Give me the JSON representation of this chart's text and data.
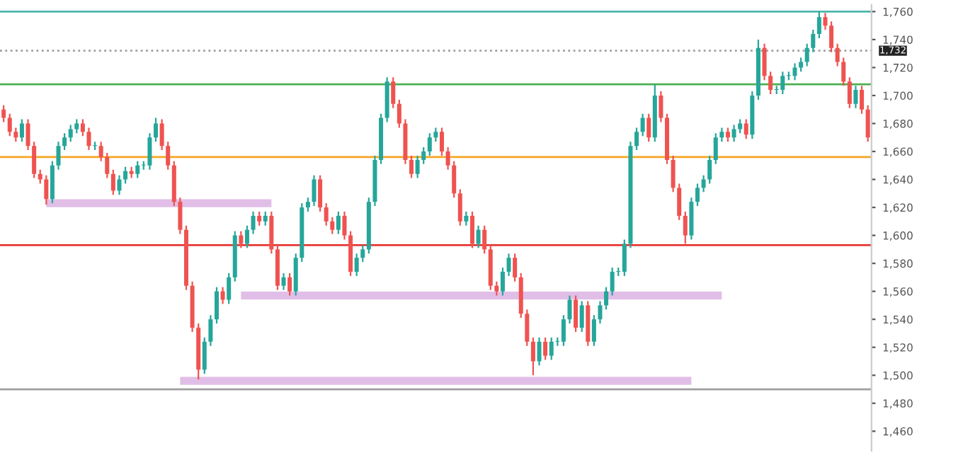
{
  "chart_data": {
    "type": "candlestick",
    "categories": [
      null,
      null,
      null,
      null,
      null,
      null,
      null,
      null,
      null,
      null,
      null,
      null,
      null,
      null,
      null,
      null,
      null,
      null,
      null,
      null,
      null,
      null,
      null,
      null,
      null,
      null,
      null,
      null,
      null,
      null,
      null,
      null,
      null,
      null,
      null,
      null,
      null,
      null,
      null,
      null,
      null,
      null,
      null,
      null,
      null,
      null,
      null,
      null,
      null,
      null,
      null,
      null,
      null,
      null,
      null,
      null,
      null,
      null,
      null,
      null,
      null,
      null,
      null,
      null,
      null,
      null,
      null,
      null,
      null,
      null,
      null,
      null,
      null,
      null,
      null,
      null,
      null,
      null,
      null,
      null,
      null,
      null,
      null,
      null,
      null,
      null,
      null,
      null,
      null,
      null,
      null,
      null,
      null,
      null,
      null,
      null,
      null,
      null,
      null,
      null,
      null,
      null,
      null,
      null,
      null,
      null,
      null,
      null,
      null,
      null,
      null,
      null,
      null,
      null,
      null,
      null,
      null,
      null,
      null,
      null,
      null,
      null,
      null,
      null,
      null,
      null,
      null,
      null,
      null,
      null,
      null,
      null,
      null,
      null,
      null,
      null,
      null,
      null,
      null,
      null,
      null,
      null,
      null
    ],
    "ohlc": [
      [
        1690,
        1693,
        1681,
        1684
      ],
      [
        1684,
        1687,
        1671,
        1674
      ],
      [
        1674,
        1677,
        1667,
        1670
      ],
      [
        1670,
        1683,
        1667,
        1680
      ],
      [
        1680,
        1683,
        1661,
        1664
      ],
      [
        1664,
        1667,
        1641,
        1644
      ],
      [
        1644,
        1647,
        1637,
        1640
      ],
      [
        1640,
        1643,
        1622,
        1626
      ],
      [
        1626,
        1653,
        1623,
        1650
      ],
      [
        1650,
        1667,
        1647,
        1664
      ],
      [
        1664,
        1673,
        1661,
        1670
      ],
      [
        1670,
        1679,
        1667,
        1676
      ],
      [
        1676,
        1683,
        1673,
        1680
      ],
      [
        1680,
        1683,
        1671,
        1674
      ],
      [
        1674,
        1677,
        1661,
        1664
      ],
      [
        1664,
        1667,
        1661,
        1664
      ],
      [
        1664,
        1667,
        1653,
        1656
      ],
      [
        1656,
        1659,
        1641,
        1644
      ],
      [
        1644,
        1647,
        1629,
        1632
      ],
      [
        1632,
        1643,
        1629,
        1640
      ],
      [
        1640,
        1649,
        1637,
        1646
      ],
      [
        1646,
        1649,
        1641,
        1644
      ],
      [
        1644,
        1653,
        1641,
        1650
      ],
      [
        1650,
        1653,
        1647,
        1650
      ],
      [
        1650,
        1673,
        1647,
        1670
      ],
      [
        1670,
        1684,
        1667,
        1680
      ],
      [
        1680,
        1683,
        1661,
        1664
      ],
      [
        1664,
        1667,
        1647,
        1650
      ],
      [
        1650,
        1653,
        1621,
        1624
      ],
      [
        1624,
        1627,
        1601,
        1604
      ],
      [
        1604,
        1607,
        1561,
        1564
      ],
      [
        1564,
        1567,
        1531,
        1534
      ],
      [
        1534,
        1537,
        1497,
        1504
      ],
      [
        1504,
        1527,
        1501,
        1524
      ],
      [
        1524,
        1543,
        1521,
        1540
      ],
      [
        1540,
        1563,
        1537,
        1560
      ],
      [
        1560,
        1563,
        1551,
        1554
      ],
      [
        1554,
        1573,
        1551,
        1570
      ],
      [
        1570,
        1603,
        1567,
        1600
      ],
      [
        1600,
        1603,
        1591,
        1594
      ],
      [
        1594,
        1607,
        1591,
        1604
      ],
      [
        1604,
        1617,
        1601,
        1614
      ],
      [
        1614,
        1617,
        1607,
        1610
      ],
      [
        1610,
        1617,
        1607,
        1614
      ],
      [
        1614,
        1617,
        1587,
        1590
      ],
      [
        1590,
        1593,
        1561,
        1564
      ],
      [
        1564,
        1573,
        1561,
        1570
      ],
      [
        1570,
        1573,
        1557,
        1560
      ],
      [
        1560,
        1587,
        1557,
        1584
      ],
      [
        1584,
        1623,
        1581,
        1620
      ],
      [
        1620,
        1627,
        1617,
        1624
      ],
      [
        1624,
        1643,
        1621,
        1640
      ],
      [
        1640,
        1643,
        1617,
        1620
      ],
      [
        1620,
        1623,
        1607,
        1610
      ],
      [
        1610,
        1613,
        1601,
        1604
      ],
      [
        1604,
        1617,
        1601,
        1614
      ],
      [
        1614,
        1617,
        1597,
        1600
      ],
      [
        1600,
        1603,
        1571,
        1574
      ],
      [
        1574,
        1587,
        1571,
        1584
      ],
      [
        1584,
        1593,
        1581,
        1590
      ],
      [
        1590,
        1627,
        1587,
        1624
      ],
      [
        1624,
        1657,
        1621,
        1654
      ],
      [
        1654,
        1687,
        1651,
        1684
      ],
      [
        1684,
        1713,
        1681,
        1710
      ],
      [
        1710,
        1713,
        1691,
        1694
      ],
      [
        1694,
        1697,
        1677,
        1680
      ],
      [
        1680,
        1683,
        1651,
        1654
      ],
      [
        1654,
        1657,
        1641,
        1644
      ],
      [
        1644,
        1657,
        1641,
        1654
      ],
      [
        1654,
        1663,
        1651,
        1660
      ],
      [
        1660,
        1673,
        1657,
        1670
      ],
      [
        1670,
        1677,
        1667,
        1674
      ],
      [
        1674,
        1677,
        1657,
        1660
      ],
      [
        1660,
        1663,
        1647,
        1650
      ],
      [
        1650,
        1653,
        1627,
        1630
      ],
      [
        1630,
        1633,
        1607,
        1610
      ],
      [
        1610,
        1617,
        1607,
        1614
      ],
      [
        1614,
        1617,
        1591,
        1594
      ],
      [
        1594,
        1607,
        1591,
        1604
      ],
      [
        1604,
        1607,
        1587,
        1590
      ],
      [
        1590,
        1593,
        1561,
        1564
      ],
      [
        1564,
        1567,
        1557,
        1560
      ],
      [
        1560,
        1577,
        1557,
        1574
      ],
      [
        1574,
        1587,
        1571,
        1584
      ],
      [
        1584,
        1587,
        1567,
        1570
      ],
      [
        1570,
        1573,
        1541,
        1544
      ],
      [
        1544,
        1547,
        1521,
        1524
      ],
      [
        1524,
        1527,
        1500,
        1510
      ],
      [
        1510,
        1527,
        1507,
        1524
      ],
      [
        1524,
        1527,
        1511,
        1514
      ],
      [
        1514,
        1527,
        1511,
        1524
      ],
      [
        1524,
        1527,
        1521,
        1524
      ],
      [
        1524,
        1543,
        1521,
        1540
      ],
      [
        1540,
        1557,
        1537,
        1554
      ],
      [
        1554,
        1557,
        1531,
        1534
      ],
      [
        1534,
        1553,
        1531,
        1550
      ],
      [
        1550,
        1553,
        1521,
        1524
      ],
      [
        1524,
        1543,
        1521,
        1540
      ],
      [
        1540,
        1553,
        1537,
        1550
      ],
      [
        1550,
        1563,
        1547,
        1560
      ],
      [
        1560,
        1577,
        1557,
        1574
      ],
      [
        1574,
        1577,
        1571,
        1574
      ],
      [
        1574,
        1597,
        1571,
        1594
      ],
      [
        1594,
        1667,
        1591,
        1664
      ],
      [
        1664,
        1677,
        1661,
        1674
      ],
      [
        1674,
        1687,
        1671,
        1684
      ],
      [
        1684,
        1687,
        1667,
        1670
      ],
      [
        1670,
        1708,
        1667,
        1700
      ],
      [
        1700,
        1703,
        1681,
        1684
      ],
      [
        1684,
        1687,
        1651,
        1654
      ],
      [
        1654,
        1657,
        1631,
        1634
      ],
      [
        1634,
        1637,
        1611,
        1614
      ],
      [
        1614,
        1617,
        1594,
        1600
      ],
      [
        1600,
        1627,
        1597,
        1624
      ],
      [
        1624,
        1637,
        1621,
        1634
      ],
      [
        1634,
        1643,
        1631,
        1640
      ],
      [
        1640,
        1657,
        1637,
        1654
      ],
      [
        1654,
        1673,
        1651,
        1670
      ],
      [
        1670,
        1677,
        1667,
        1674
      ],
      [
        1674,
        1677,
        1667,
        1670
      ],
      [
        1670,
        1679,
        1667,
        1676
      ],
      [
        1676,
        1683,
        1673,
        1680
      ],
      [
        1680,
        1683,
        1669,
        1672
      ],
      [
        1672,
        1703,
        1669,
        1700
      ],
      [
        1700,
        1740,
        1697,
        1734
      ],
      [
        1734,
        1737,
        1711,
        1714
      ],
      [
        1714,
        1717,
        1701,
        1704
      ],
      [
        1704,
        1707,
        1701,
        1704
      ],
      [
        1704,
        1717,
        1701,
        1714
      ],
      [
        1714,
        1717,
        1711,
        1714
      ],
      [
        1714,
        1723,
        1711,
        1720
      ],
      [
        1720,
        1727,
        1717,
        1724
      ],
      [
        1724,
        1737,
        1721,
        1734
      ],
      [
        1734,
        1747,
        1731,
        1744
      ],
      [
        1744,
        1760,
        1741,
        1756
      ],
      [
        1756,
        1759,
        1747,
        1750
      ],
      [
        1750,
        1753,
        1731,
        1734
      ],
      [
        1734,
        1737,
        1721,
        1724
      ],
      [
        1724,
        1727,
        1707,
        1710
      ],
      [
        1710,
        1713,
        1691,
        1694
      ],
      [
        1694,
        1707,
        1691,
        1704
      ],
      [
        1704,
        1707,
        1687,
        1690
      ],
      [
        1690,
        1693,
        1667,
        1670
      ]
    ],
    "colors": [
      "#ef5350",
      "#ef5350",
      "#ef5350",
      "#26a69a",
      "#ef5350",
      "#ef5350",
      "#ef5350",
      "#ef5350",
      "#26a69a",
      "#26a69a",
      "#26a69a",
      "#26a69a",
      "#26a69a",
      "#ef5350",
      "#ef5350",
      "#26a69a",
      "#ef5350",
      "#ef5350",
      "#ef5350",
      "#26a69a",
      "#26a69a",
      "#ef5350",
      "#26a69a",
      "#26a69a",
      "#26a69a",
      "#26a69a",
      "#ef5350",
      "#ef5350",
      "#ef5350",
      "#ef5350",
      "#ef5350",
      "#ef5350",
      "#ef5350",
      "#26a69a",
      "#26a69a",
      "#26a69a",
      "#ef5350",
      "#26a69a",
      "#26a69a",
      "#ef5350",
      "#26a69a",
      "#26a69a",
      "#ef5350",
      "#26a69a",
      "#ef5350",
      "#ef5350",
      "#26a69a",
      "#ef5350",
      "#26a69a",
      "#26a69a",
      "#26a69a",
      "#26a69a",
      "#ef5350",
      "#ef5350",
      "#ef5350",
      "#26a69a",
      "#ef5350",
      "#ef5350",
      "#26a69a",
      "#26a69a",
      "#26a69a",
      "#26a69a",
      "#26a69a",
      "#26a69a",
      "#ef5350",
      "#ef5350",
      "#ef5350",
      "#ef5350",
      "#26a69a",
      "#26a69a",
      "#26a69a",
      "#26a69a",
      "#ef5350",
      "#ef5350",
      "#ef5350",
      "#ef5350",
      "#26a69a",
      "#ef5350",
      "#26a69a",
      "#ef5350",
      "#ef5350",
      "#ef5350",
      "#26a69a",
      "#26a69a",
      "#ef5350",
      "#ef5350",
      "#ef5350",
      "#ef5350",
      "#26a69a",
      "#ef5350",
      "#26a69a",
      "#26a69a",
      "#26a69a",
      "#26a69a",
      "#ef5350",
      "#26a69a",
      "#ef5350",
      "#26a69a",
      "#26a69a",
      "#26a69a",
      "#26a69a",
      "#26a69a",
      "#26a69a",
      "#26a69a",
      "#26a69a",
      "#26a69a",
      "#ef5350",
      "#26a69a",
      "#ef5350",
      "#ef5350",
      "#ef5350",
      "#ef5350",
      "#ef5350",
      "#26a69a",
      "#26a69a",
      "#26a69a",
      "#26a69a",
      "#26a69a",
      "#26a69a",
      "#ef5350",
      "#26a69a",
      "#26a69a",
      "#ef5350",
      "#26a69a",
      "#26a69a",
      "#ef5350",
      "#ef5350",
      "#26a69a",
      "#26a69a",
      "#26a69a",
      "#26a69a",
      "#26a69a",
      "#26a69a",
      "#26a69a",
      "#26a69a",
      "#ef5350",
      "#ef5350",
      "#ef5350",
      "#ef5350",
      "#ef5350",
      "#26a69a",
      "#ef5350",
      "#ef5350"
    ],
    "series": [
      {
        "type": "line",
        "color": "#e1bee7",
        "values": [
          null,
          null,
          null,
          null,
          null,
          null,
          null,
          1623,
          1623,
          1623,
          1623,
          1623,
          1623,
          1623,
          1623,
          1623,
          1623,
          1623,
          1623,
          1623,
          1623,
          1623,
          1623,
          1623,
          1623,
          1623,
          1623,
          1623,
          1623,
          1623,
          1623,
          1623,
          1623,
          1623,
          1623,
          1623,
          1623,
          1623,
          1623,
          1623,
          1623,
          1623,
          1623,
          1623,
          1623,
          null,
          null,
          null,
          null,
          null,
          null,
          null,
          null,
          null,
          null,
          null,
          null,
          null,
          null,
          null,
          null,
          null,
          null,
          null,
          null,
          null,
          null,
          null,
          null,
          null,
          null,
          null,
          null,
          null,
          null,
          null,
          null,
          null,
          null,
          null,
          null,
          null,
          null,
          null,
          null,
          null,
          null,
          null,
          null,
          null,
          null,
          null,
          null,
          null,
          null,
          null,
          null,
          null,
          null,
          null,
          null,
          null,
          null,
          null,
          null,
          null,
          null,
          null,
          null,
          null,
          null,
          null,
          null,
          null,
          null,
          null,
          null,
          null,
          null,
          null,
          null,
          null,
          null,
          null,
          null,
          null,
          null,
          null,
          null,
          null,
          null,
          null,
          null,
          null,
          null,
          null,
          null,
          null,
          null,
          null,
          null,
          null,
          null
        ]
      },
      {
        "type": "line",
        "color": "#e1bee7",
        "values": [
          null,
          null,
          null,
          null,
          null,
          null,
          null,
          null,
          null,
          null,
          null,
          null,
          null,
          null,
          null,
          null,
          null,
          null,
          null,
          null,
          null,
          null,
          null,
          null,
          null,
          null,
          null,
          null,
          null,
          null,
          null,
          null,
          null,
          null,
          null,
          null,
          null,
          null,
          null,
          1557,
          1557,
          1557,
          1557,
          1557,
          1557,
          1557,
          1557,
          1557,
          1557,
          1557,
          1557,
          1557,
          1557,
          1557,
          1557,
          1557,
          1557,
          1557,
          1557,
          1557,
          1557,
          1557,
          1557,
          1557,
          1557,
          1557,
          1557,
          1557,
          1557,
          1557,
          1557,
          1557,
          1557,
          1557,
          1557,
          1557,
          1557,
          1557,
          1557,
          1557,
          1557,
          1557,
          1557,
          1557,
          1557,
          1557,
          1557,
          1557,
          1557,
          1557,
          1557,
          1557,
          1557,
          1557,
          1557,
          1557,
          1557,
          1557,
          1557,
          1557,
          1557,
          1557,
          1557,
          1557,
          1557,
          1557,
          1557,
          1557,
          1557,
          1557,
          1557,
          1557,
          1557,
          1557,
          1557,
          1557,
          1557,
          1557,
          1557,
          null,
          null,
          null,
          null,
          null,
          null,
          null,
          null,
          null,
          null,
          null,
          null,
          null,
          null,
          null,
          null,
          null,
          null,
          null,
          null,
          null,
          null,
          null,
          null
        ]
      },
      {
        "type": "line",
        "color": "#e1bee7",
        "values": [
          null,
          null,
          null,
          null,
          null,
          null,
          null,
          null,
          null,
          null,
          null,
          null,
          null,
          null,
          null,
          null,
          null,
          null,
          null,
          null,
          null,
          null,
          null,
          null,
          null,
          null,
          null,
          null,
          null,
          1496,
          1496,
          1496,
          1496,
          1496,
          1496,
          1496,
          1496,
          1496,
          1496,
          1496,
          1496,
          1496,
          1496,
          1496,
          1496,
          1496,
          1496,
          1496,
          1496,
          1496,
          1496,
          1496,
          1496,
          1496,
          1496,
          1496,
          1496,
          1496,
          1496,
          1496,
          1496,
          1496,
          1496,
          1496,
          1496,
          1496,
          1496,
          1496,
          1496,
          1496,
          1496,
          1496,
          1496,
          1496,
          1496,
          1496,
          1496,
          1496,
          1496,
          1496,
          1496,
          1496,
          1496,
          1496,
          1496,
          1496,
          1496,
          1496,
          1496,
          1496,
          1496,
          1496,
          1496,
          1496,
          1496,
          1496,
          1496,
          1496,
          1496,
          1496,
          1496,
          1496,
          1496,
          1496,
          1496,
          1496,
          1496,
          1496,
          1496,
          1496,
          1496,
          1496,
          1496,
          1496,
          null,
          null,
          null,
          null,
          null,
          null,
          null,
          null,
          null,
          null,
          null,
          null,
          null,
          null,
          null,
          null,
          null,
          null,
          null,
          null,
          null,
          null,
          null,
          null,
          null,
          null,
          null,
          null,
          null
        ]
      }
    ],
    "ref_lines": [
      {
        "axis": "y",
        "value": 1760,
        "color": "#4db6ac"
      },
      {
        "axis": "y",
        "value": 1732,
        "label": "1,732",
        "color": "#9e9e9e",
        "line_style": "dotted"
      },
      {
        "axis": "y",
        "value": 1708,
        "color": "#4caf50"
      },
      {
        "axis": "y",
        "value": 1656,
        "color": "#f5a623"
      },
      {
        "axis": "y",
        "value": 1593,
        "color": "#e53935"
      },
      {
        "axis": "y",
        "value": 1490,
        "color": "#9e9e9e"
      }
    ],
    "ylim": [
      1446,
      1765
    ],
    "yticks": [
      {
        "value": 1460,
        "label": "1,460"
      },
      {
        "value": 1480,
        "label": "1,480"
      },
      {
        "value": 1500,
        "label": "1,500"
      },
      {
        "value": 1520,
        "label": "1,520"
      },
      {
        "value": 1540,
        "label": "1,540"
      },
      {
        "value": 1560,
        "label": "1,560"
      },
      {
        "value": 1580,
        "label": "1,580"
      },
      {
        "value": 1600,
        "label": "1,600"
      },
      {
        "value": 1620,
        "label": "1,620"
      },
      {
        "value": 1640,
        "label": "1,640"
      },
      {
        "value": 1660,
        "label": "1,660"
      },
      {
        "value": 1680,
        "label": "1,680"
      },
      {
        "value": 1700,
        "label": "1,700"
      },
      {
        "value": 1720,
        "label": "1,720"
      },
      {
        "value": 1740,
        "label": "1,740"
      },
      {
        "value": 1760,
        "label": "1,760"
      }
    ],
    "tick_labels": "y",
    "grid": false,
    "legend": false
  }
}
